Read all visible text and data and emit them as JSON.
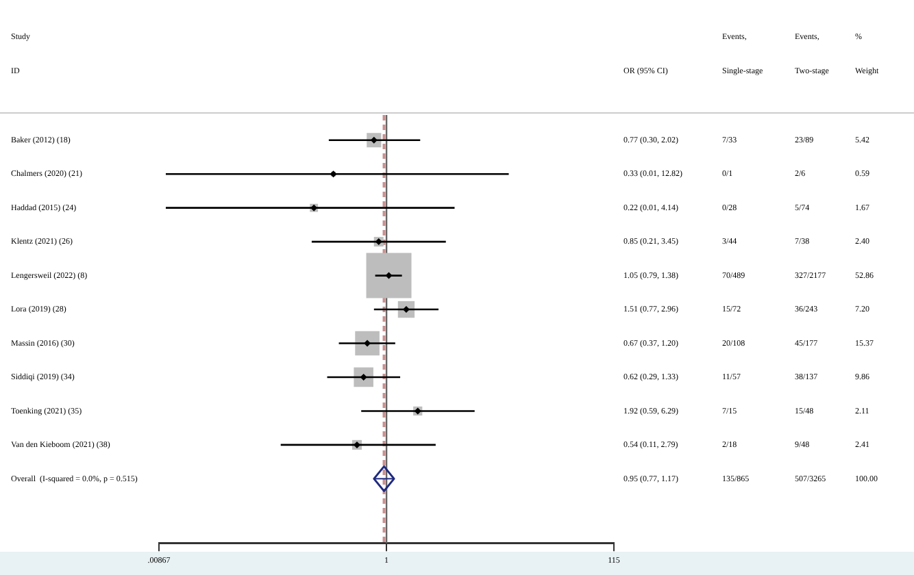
{
  "chart_data": {
    "type": "scatter",
    "orientation": "horizontal",
    "log": "x",
    "grid": false,
    "legend": false,
    "categories": [
      "Baker (2012) (18)",
      "Chalmers (2020) (21)",
      "Haddad (2015) (24)",
      "Klentz (2021) (26)",
      "Lengersweil (2022) (8)",
      "Lora (2019) (28)",
      "Massin (2016) (30)",
      "Siddiqi (2019) (34)",
      "Toenking (2021) (35)",
      "Van den Kieboom (2021) (38)",
      "Overall  (I-squared = 0.0%, p = 0.515)"
    ],
    "series": [
      {
        "marker": "square",
        "color": "#bdbdbd",
        "values": [
          0.77,
          0.33,
          0.22,
          0.85,
          1.05,
          1.51,
          0.67,
          0.62,
          1.92,
          0.54,
          null
        ],
        "errors": [
          [
            0.3,
            2.02
          ],
          [
            0.01,
            12.82
          ],
          [
            0.01,
            4.14
          ],
          [
            0.21,
            3.45
          ],
          [
            0.79,
            1.38
          ],
          [
            0.77,
            2.96
          ],
          [
            0.37,
            1.2
          ],
          [
            0.29,
            1.33
          ],
          [
            0.59,
            6.29
          ],
          [
            0.11,
            2.79
          ],
          null
        ],
        "sizes": [
          0.103,
          0.011,
          0.032,
          0.045,
          1,
          0.136,
          0.291,
          0.187,
          0.04,
          0.046,
          null
        ]
      },
      {
        "marker": "diamond",
        "color": "#1f2a80",
        "values": [
          null,
          null,
          null,
          null,
          null,
          null,
          null,
          null,
          null,
          null,
          0.95
        ],
        "errors": [
          null,
          null,
          null,
          null,
          null,
          null,
          null,
          null,
          null,
          null,
          [
            0.77,
            1.17
          ]
        ]
      }
    ],
    "xlim": [
      0.00867,
      115
    ],
    "xticks": [
      {
        "value": 0.00867,
        "label": ".00867"
      },
      1,
      115
    ],
    "ref_lines": [
      {
        "axis": "x",
        "value": 1,
        "color": "#666666",
        "line_style": "solid"
      },
      {
        "axis": "x",
        "value": 0.95,
        "color": "#c89090",
        "line_style": "dashed"
      }
    ],
    "annotations": [
      "Study",
      "ID",
      "OR (95% CI)",
      "Events,",
      "Single-stage",
      "Events,",
      "Two-stage",
      "%",
      "Weight",
      "0.77 (0.30, 2.02)",
      "7/33",
      "23/89",
      "5.42",
      "0.33 (0.01, 12.82)",
      "0/1",
      "2/6",
      "0.59",
      "0.22 (0.01, 4.14)",
      "0/28",
      "5/74",
      "1.67",
      "0.85 (0.21, 3.45)",
      "3/44",
      "7/38",
      "2.40",
      "1.05 (0.79, 1.38)",
      "70/489",
      "327/2177",
      "52.86",
      "1.51 (0.77, 2.96)",
      "15/72",
      "36/243",
      "7.20",
      "0.67 (0.37, 1.20)",
      "20/108",
      "45/177",
      "15.37",
      "0.62 (0.29, 1.33)",
      "11/57",
      "38/137",
      "9.86",
      "1.92 (0.59, 6.29)",
      "7/15",
      "15/48",
      "2.11",
      "0.54 (0.11, 2.79)",
      "2/18",
      "9/48",
      "2.41",
      "0.95 (0.77, 1.17)",
      "135/865",
      "507/3265",
      "100.00"
    ]
  }
}
